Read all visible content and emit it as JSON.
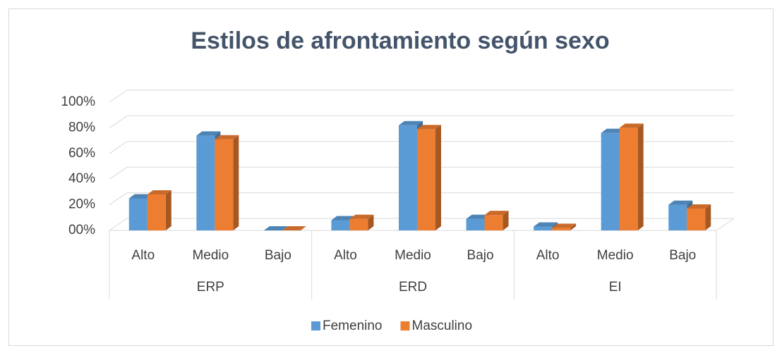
{
  "chart_data": {
    "type": "bar3d",
    "title": "Estilos de afrontamiento según sexo",
    "categories": [
      "Alto",
      "Medio",
      "Bajo",
      "Alto",
      "Medio",
      "Bajo",
      "Alto",
      "Medio",
      "Bajo"
    ],
    "category_groups": [
      "ERP",
      "ERD",
      "EI"
    ],
    "series": [
      {
        "name": "Femenino",
        "color": "#5b9bd5",
        "values": [
          25,
          74,
          0,
          8,
          82,
          9,
          3,
          76,
          20
        ]
      },
      {
        "name": "Masculino",
        "color": "#ed7d31",
        "values": [
          28,
          71,
          0,
          9,
          79,
          12,
          2,
          80,
          17
        ]
      }
    ],
    "ylim": [
      0,
      100
    ],
    "yticks": [
      {
        "value": 0,
        "label": "00%"
      },
      {
        "value": 20,
        "label": "20%"
      },
      {
        "value": 40,
        "label": "40%"
      },
      {
        "value": 60,
        "label": "60%"
      },
      {
        "value": 80,
        "label": "80%"
      },
      {
        "value": 100,
        "label": "100%"
      }
    ],
    "grid": true,
    "legend": "bottom"
  }
}
